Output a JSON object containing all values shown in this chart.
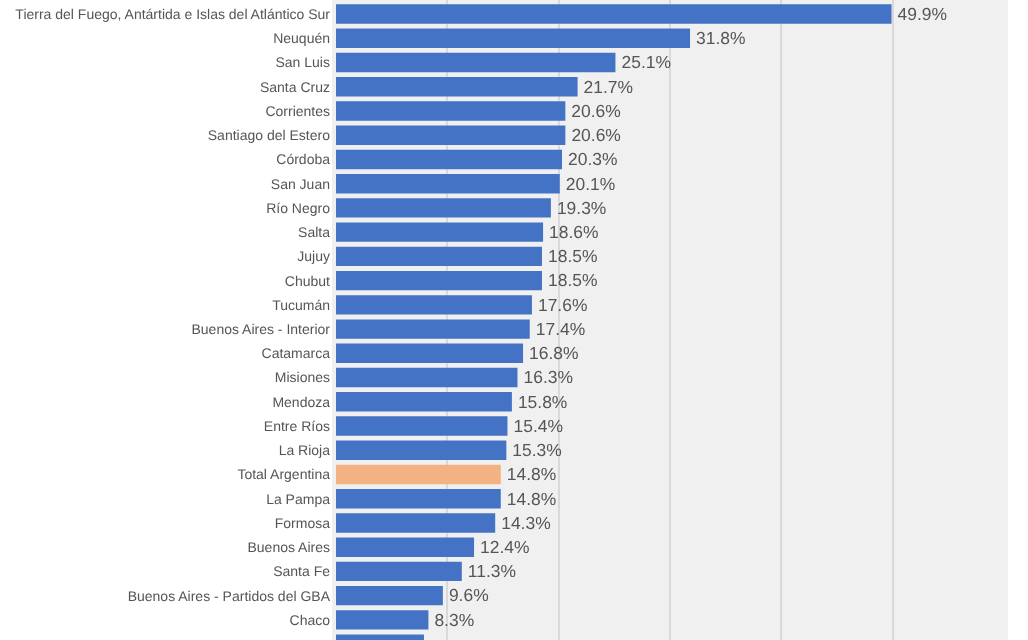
{
  "chart_data": {
    "type": "bar",
    "orientation": "horizontal",
    "categories": [
      "Tierra del Fuego, Antártida e Islas del Atlántico Sur",
      "Neuquén",
      "San Luis",
      "Santa Cruz",
      "Corrientes",
      "Santiago del Estero",
      "Córdoba",
      "San Juan",
      "Río Negro",
      "Salta",
      "Jujuy",
      "Chubut",
      "Tucumán",
      "Buenos Aires - Interior",
      "Catamarca",
      "Misiones",
      "Mendoza",
      "Entre Ríos",
      "La Rioja",
      "Total Argentina",
      "La Pampa",
      "Formosa",
      "Buenos Aires",
      "Santa Fe",
      "Buenos Aires - Partidos del GBA",
      "Chaco",
      null
    ],
    "values": [
      49.9,
      31.8,
      25.1,
      21.7,
      20.6,
      20.6,
      20.3,
      20.1,
      19.3,
      18.6,
      18.5,
      18.5,
      17.6,
      17.4,
      16.8,
      16.3,
      15.8,
      15.4,
      15.3,
      14.8,
      14.8,
      14.3,
      12.4,
      11.3,
      9.6,
      8.3,
      7.9
    ],
    "value_labels": [
      "49.9%",
      "31.8%",
      "25.1%",
      "21.7%",
      "20.6%",
      "20.6%",
      "20.3%",
      "20.1%",
      "19.3%",
      "18.6%",
      "18.5%",
      "18.5%",
      "17.6%",
      "17.4%",
      "16.8%",
      "16.3%",
      "15.8%",
      "15.4%",
      "15.3%",
      "14.8%",
      "14.8%",
      "14.3%",
      "12.4%",
      "11.3%",
      "9.6%",
      "8.3%",
      null
    ],
    "colors": [
      "#4472c4",
      "#4472c4",
      "#4472c4",
      "#4472c4",
      "#4472c4",
      "#4472c4",
      "#4472c4",
      "#4472c4",
      "#4472c4",
      "#4472c4",
      "#4472c4",
      "#4472c4",
      "#4472c4",
      "#4472c4",
      "#4472c4",
      "#4472c4",
      "#4472c4",
      "#4472c4",
      "#4472c4",
      "#f4b183",
      "#4472c4",
      "#4472c4",
      "#4472c4",
      "#4472c4",
      "#4472c4",
      "#4472c4",
      "#4472c4"
    ],
    "xlim": [
      0,
      60
    ],
    "xticks": [
      {
        "value": 10,
        "label": null
      },
      {
        "value": 20,
        "label": null
      },
      {
        "value": 30,
        "label": null
      },
      {
        "value": 40,
        "label": null
      },
      {
        "value": 50,
        "label": null
      }
    ],
    "grid": "x",
    "tick_labels": "y",
    "legend": false
  }
}
